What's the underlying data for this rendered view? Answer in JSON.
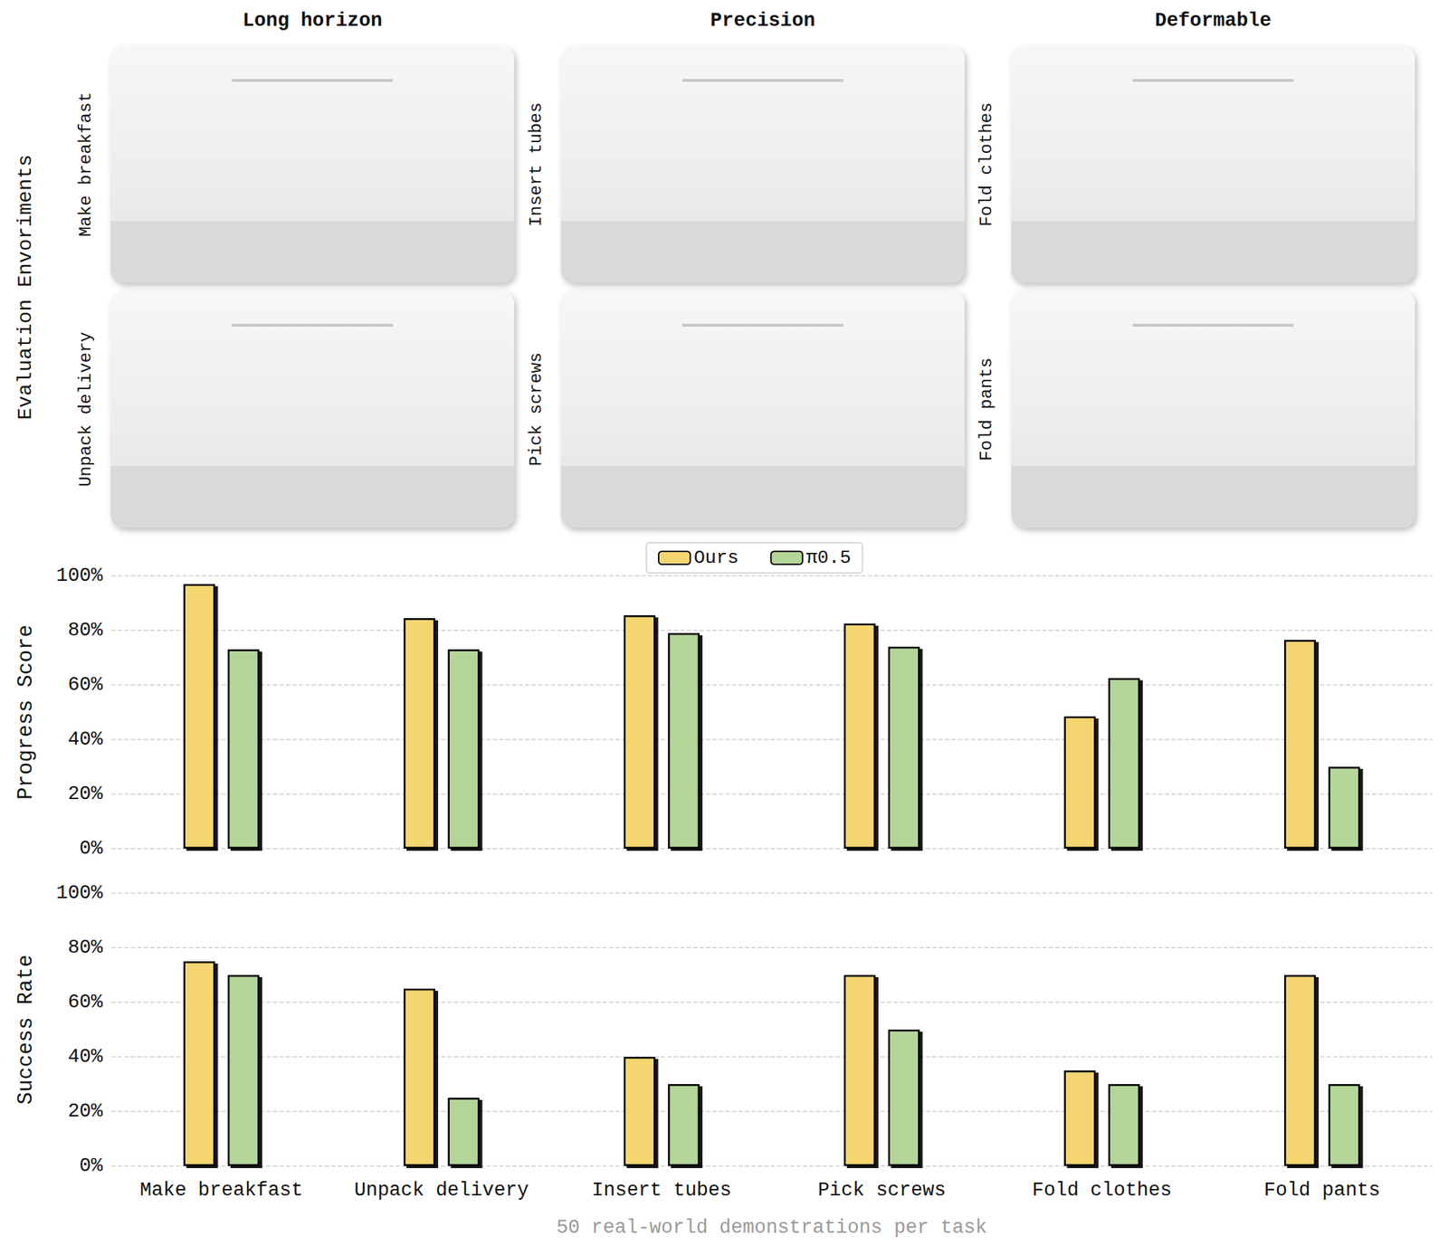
{
  "header": {
    "section_label": "Evaluation Envoriments",
    "columns": [
      {
        "title": "Long horizon",
        "rows": [
          "Make breakfast",
          "Unpack delivery"
        ]
      },
      {
        "title": "Precision",
        "rows": [
          "Insert tubes",
          "Pick screws"
        ]
      },
      {
        "title": "Deformable",
        "rows": [
          "Fold clothes",
          "Fold pants"
        ]
      }
    ]
  },
  "chart_data": [
    {
      "type": "bar",
      "ylabel": "Progress Score",
      "categories": [
        "Make breakfast",
        "Unpack delivery",
        "Insert tubes",
        "Pick screws",
        "Fold clothes",
        "Fold pants"
      ],
      "series": [
        {
          "name": "Ours",
          "color": "#f5d56f",
          "values": [
            97,
            84.5,
            85.5,
            82.5,
            48.5,
            76.5
          ]
        },
        {
          "name": "π0.5",
          "color": "#b4d598",
          "values": [
            73,
            73,
            79,
            74,
            62.5,
            30
          ]
        }
      ],
      "ylim": [
        0,
        100
      ],
      "yticks": [
        {
          "value": 0,
          "label": "0%"
        },
        {
          "value": 20,
          "label": "20%"
        },
        {
          "value": 40,
          "label": "40%"
        },
        {
          "value": 60,
          "label": "60%"
        },
        {
          "value": 80,
          "label": "80%"
        },
        {
          "value": 100,
          "label": "100%"
        }
      ],
      "grid": true,
      "legend": "top",
      "tick_labels": "y"
    },
    {
      "type": "bar",
      "ylabel": "Success Rate",
      "xlabel": "50 real-world demonstrations per task",
      "categories": [
        "Make breakfast",
        "Unpack delivery",
        "Insert tubes",
        "Pick screws",
        "Fold clothes",
        "Fold pants"
      ],
      "series": [
        {
          "name": "Ours",
          "color": "#f5d56f",
          "values": [
            75,
            65,
            40,
            70,
            35,
            70
          ]
        },
        {
          "name": "π0.5",
          "color": "#b4d598",
          "values": [
            70,
            25,
            30,
            50,
            30,
            30
          ]
        }
      ],
      "ylim": [
        0,
        100
      ],
      "yticks": [
        {
          "value": 0,
          "label": "0%"
        },
        {
          "value": 20,
          "label": "20%"
        },
        {
          "value": 40,
          "label": "40%"
        },
        {
          "value": 60,
          "label": "60%"
        },
        {
          "value": 80,
          "label": "80%"
        },
        {
          "value": 100,
          "label": "100%"
        }
      ],
      "grid": true
    }
  ]
}
